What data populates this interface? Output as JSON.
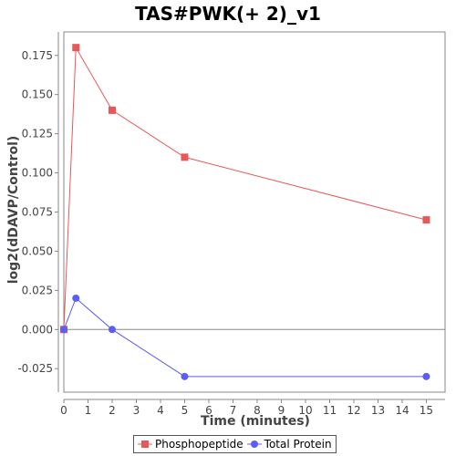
{
  "chart_data": {
    "type": "line",
    "title": "TAS#PWK(+ 2)_v1",
    "xlabel": "Time (minutes)",
    "ylabel": "log2(dDAVP/Control)",
    "xlim": [
      0,
      15.7
    ],
    "ylim": [
      -0.04,
      0.19
    ],
    "x_ticks": [
      0,
      1,
      2,
      3,
      4,
      5,
      6,
      7,
      8,
      9,
      10,
      11,
      12,
      13,
      14,
      15
    ],
    "y_ticks": [
      -0.025,
      0.0,
      0.025,
      0.05,
      0.075,
      0.1,
      0.125,
      0.15,
      0.175
    ],
    "y_tick_labels": [
      "-0.025",
      "0.000",
      "0.025",
      "0.050",
      "0.075",
      "0.100",
      "0.125",
      "0.150",
      "0.175"
    ],
    "zero_line": true,
    "grid": false,
    "legend_position": "bottom-center",
    "series": [
      {
        "name": "Phosphopeptide",
        "color": "#e8575a",
        "marker": "square",
        "x": [
          0,
          0.5,
          2,
          5,
          15
        ],
        "y": [
          0.0,
          0.18,
          0.14,
          0.11,
          0.07
        ]
      },
      {
        "name": "Total Protein",
        "color": "#5b5ef0",
        "marker": "circle",
        "x": [
          0,
          0.5,
          2,
          5,
          15
        ],
        "y": [
          0.0,
          0.02,
          0.0,
          -0.03,
          -0.03
        ]
      }
    ]
  }
}
